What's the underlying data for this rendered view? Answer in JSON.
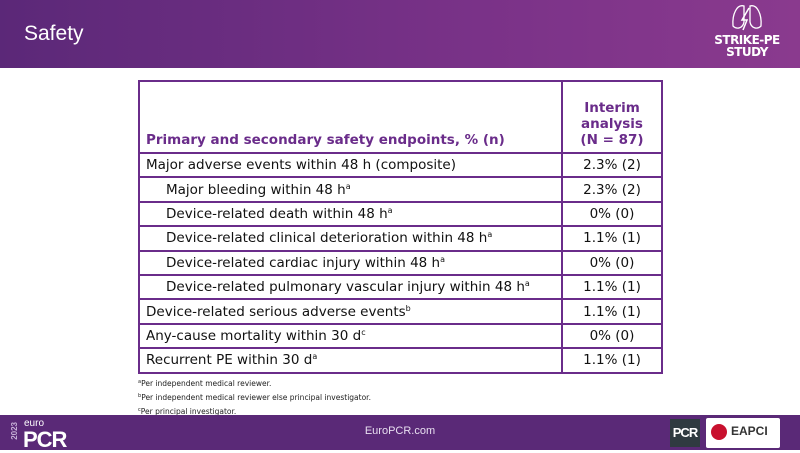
{
  "slide": {
    "title": "Safety"
  },
  "logo": {
    "line1": "STRIKE-PE",
    "line2": "STUDY"
  },
  "table": {
    "header": {
      "col1": "Primary and secondary safety endpoints, % (n)",
      "col2_l1": "Interim",
      "col2_l2": "analysis",
      "col2_l3": "(N = 87)"
    },
    "rows": [
      {
        "label": "Major adverse events within 48 h (composite)",
        "sup": "",
        "value": "2.3% (2)"
      },
      {
        "label": "Major bleeding within 48 h",
        "sup": "a",
        "value": "2.3% (2)"
      },
      {
        "label": "Device-related death within 48 h",
        "sup": "a",
        "value": "0% (0)"
      },
      {
        "label": "Device-related clinical deterioration within 48 h",
        "sup": "a",
        "value": "1.1% (1)"
      },
      {
        "label": "Device-related cardiac injury within 48 h",
        "sup": "a",
        "value": "0% (0)"
      },
      {
        "label": "Device-related pulmonary vascular injury within 48 h",
        "sup": "a",
        "value": "1.1% (1)"
      },
      {
        "label": "Device-related serious adverse events",
        "sup": "b",
        "value": "1.1% (1)"
      },
      {
        "label": "Any-cause mortality within 30 d",
        "sup": "c",
        "value": "0% (0)"
      },
      {
        "label": "Recurrent PE within 30 d",
        "sup": "a",
        "value": "1.1% (1)"
      }
    ]
  },
  "footnotes": [
    {
      "sup": "a",
      "text": "Per independent medical reviewer."
    },
    {
      "sup": "b",
      "text": "Per independent medical reviewer else principal investigator."
    },
    {
      "sup": "c",
      "text": "Per principal investigator."
    }
  ],
  "footer": {
    "year": "2023",
    "euro": "euro",
    "pcr": "PCR",
    "url": "EuroPCR.com",
    "pcr_logo": "PCR",
    "eapci": "EAPCI"
  }
}
